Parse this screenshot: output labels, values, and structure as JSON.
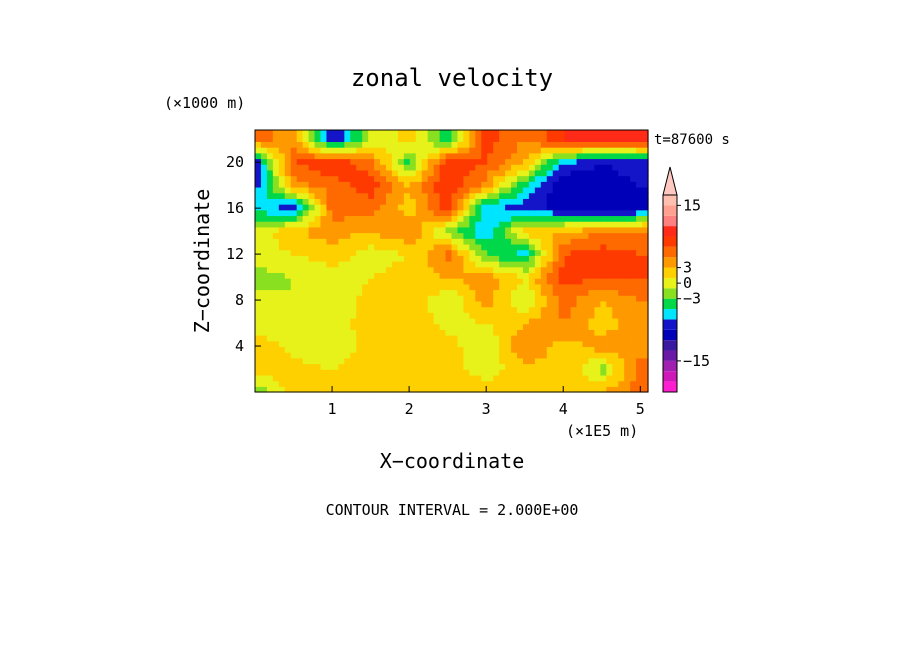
{
  "chart_data": {
    "type": "heatmap",
    "title": "zonal velocity",
    "xlabel": "X−coordinate",
    "ylabel": "Z−coordinate",
    "x_unit": "(×1E5 m)",
    "y_unit": "(×1000 m)",
    "time_label": "t=87600 s",
    "footer": "CONTOUR INTERVAL = 2.000E+00",
    "x_ticks": [
      "1",
      "2",
      "3",
      "4",
      "5"
    ],
    "y_ticks": [
      "4",
      "8",
      "12",
      "16",
      "20"
    ],
    "xlim": [
      0,
      5.1
    ],
    "ylim": [
      0,
      22.8
    ],
    "contour_interval": 2,
    "colorbar": {
      "labels": [
        "15",
        "3",
        "0",
        "−3",
        "−15"
      ],
      "levels": [
        -19,
        -17,
        -15,
        -13,
        -11,
        -9,
        -7,
        -5,
        -3,
        -1,
        1,
        3,
        5,
        7,
        9,
        11,
        13,
        15,
        17,
        19
      ],
      "colors": [
        "#ff1fd0",
        "#d018b8",
        "#a020b0",
        "#6a18a8",
        "#3a1aa0",
        "#0000b8",
        "#1414c8",
        "#00e5ff",
        "#00d84a",
        "#88e020",
        "#e6f21a",
        "#ffd000",
        "#ff9900",
        "#ff6a00",
        "#ff3a00",
        "#ff2a18",
        "#ff8080",
        "#ffa090",
        "#ffc0b0",
        "#ffc8c0"
      ]
    },
    "field_description": "approximate zonal velocity field on an x-z grid (data units m/s)",
    "field": {
      "x": [
        0.0,
        0.5,
        1.0,
        1.5,
        2.0,
        2.5,
        3.0,
        3.5,
        4.0,
        4.5,
        5.0
      ],
      "z": [
        0,
        2,
        4,
        6,
        8,
        10,
        12,
        14,
        16,
        18,
        20,
        22
      ],
      "values": [
        [
          -3,
          2,
          3,
          2,
          2,
          3,
          2,
          3,
          2,
          3,
          6
        ],
        [
          2,
          2,
          1,
          3,
          2,
          2,
          0,
          2,
          3,
          -2,
          6
        ],
        [
          3,
          0,
          -1,
          2,
          3,
          2,
          -1,
          5,
          2,
          4,
          4
        ],
        [
          -1,
          -1,
          0,
          2,
          3,
          0,
          1,
          3,
          5,
          2,
          4
        ],
        [
          0,
          -1,
          -1,
          2,
          3,
          -1,
          4,
          -1,
          6,
          3,
          5
        ],
        [
          -2,
          -1,
          0,
          1,
          2,
          3,
          4,
          1,
          8,
          7,
          7
        ],
        [
          0,
          1,
          2,
          0,
          1,
          6,
          -3,
          -6,
          7,
          8,
          7
        ],
        [
          -1,
          3,
          4,
          3,
          5,
          -2,
          -7,
          2,
          3,
          5,
          6
        ],
        [
          -5,
          -9,
          6,
          6,
          2,
          8,
          -7,
          -8,
          -10,
          -11,
          -10
        ],
        [
          -8,
          4,
          6,
          8,
          3,
          9,
          4,
          -5,
          -11,
          -10,
          -9
        ],
        [
          -9,
          7,
          9,
          6,
          -4,
          9,
          7,
          3,
          -7,
          -9,
          -8
        ],
        [
          6,
          4,
          -9,
          -1,
          2,
          -5,
          8,
          5,
          9,
          9,
          9
        ]
      ]
    }
  }
}
